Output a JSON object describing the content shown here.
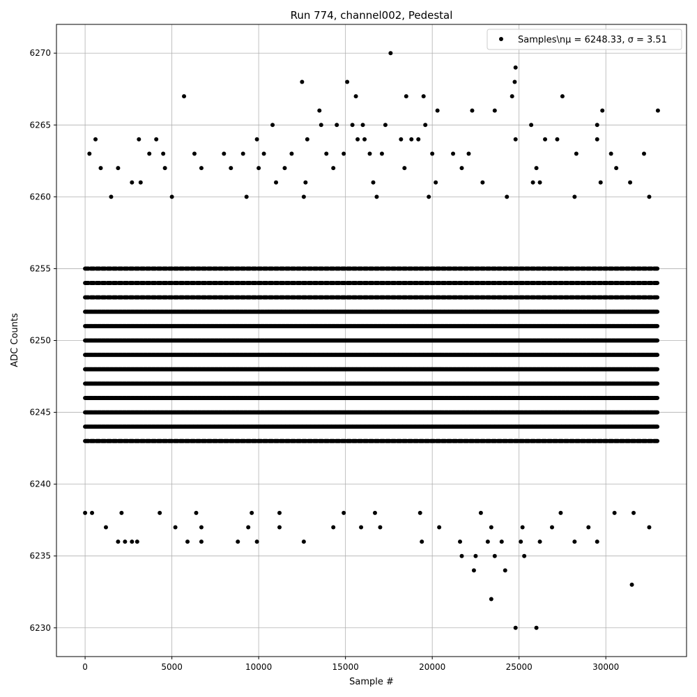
{
  "chart_data": {
    "type": "scatter",
    "title": "Run 774, channel002, Pedestal",
    "xlabel": "Sample #",
    "ylabel": "ADC Counts",
    "xlim": [
      -1650,
      34650
    ],
    "ylim": [
      6228,
      6272
    ],
    "x_ticks": [
      0,
      5000,
      10000,
      15000,
      20000,
      25000,
      30000
    ],
    "x_tick_labels": [
      "0",
      "5000",
      "10000",
      "15000",
      "20000",
      "25000",
      "30000"
    ],
    "y_ticks": [
      6230,
      6235,
      6240,
      6245,
      6250,
      6255,
      6260,
      6265,
      6270
    ],
    "y_tick_labels": [
      "6230",
      "6235",
      "6240",
      "6245",
      "6250",
      "6255",
      "6260",
      "6265",
      "6270"
    ],
    "grid": true,
    "legend_position": "top-right",
    "marker_color": "#000000",
    "series": [
      {
        "name": "Samples\\n$\\mu$ = 6248.33, $\\sigma$ = 3.51",
        "legend_label": "Samples\\nμ = 6248.33, σ = 3.51",
        "n_samples": 33000,
        "mean": 6248.33,
        "sigma": 3.51,
        "dense_band_x": [
          0,
          33000
        ],
        "dense_band_y": [
          6243,
          6255
        ],
        "points": [
          [
            17600,
            6270
          ],
          [
            24800,
            6269
          ],
          [
            24750,
            6268
          ],
          [
            15100,
            6268
          ],
          [
            12500,
            6268
          ],
          [
            5700,
            6267
          ],
          [
            15600,
            6267
          ],
          [
            18500,
            6267
          ],
          [
            19500,
            6267
          ],
          [
            24600,
            6267
          ],
          [
            27500,
            6267
          ],
          [
            13500,
            6266
          ],
          [
            20300,
            6266
          ],
          [
            22300,
            6266
          ],
          [
            23600,
            6266
          ],
          [
            29800,
            6266
          ],
          [
            33000,
            6266
          ],
          [
            13600,
            6265
          ],
          [
            10800,
            6265
          ],
          [
            14500,
            6265
          ],
          [
            15400,
            6265
          ],
          [
            16000,
            6265
          ],
          [
            17300,
            6265
          ],
          [
            19600,
            6265
          ],
          [
            25700,
            6265
          ],
          [
            29500,
            6265
          ],
          [
            600,
            6264
          ],
          [
            3100,
            6264
          ],
          [
            4100,
            6264
          ],
          [
            9900,
            6264
          ],
          [
            12800,
            6264
          ],
          [
            15700,
            6264
          ],
          [
            16100,
            6264
          ],
          [
            18200,
            6264
          ],
          [
            18800,
            6264
          ],
          [
            19200,
            6264
          ],
          [
            24800,
            6264
          ],
          [
            26500,
            6264
          ],
          [
            27200,
            6264
          ],
          [
            29500,
            6264
          ],
          [
            250,
            6263
          ],
          [
            3700,
            6263
          ],
          [
            4500,
            6263
          ],
          [
            6300,
            6263
          ],
          [
            8000,
            6263
          ],
          [
            9100,
            6263
          ],
          [
            10300,
            6263
          ],
          [
            11900,
            6263
          ],
          [
            13900,
            6263
          ],
          [
            14900,
            6263
          ],
          [
            16400,
            6263
          ],
          [
            17100,
            6263
          ],
          [
            20000,
            6263
          ],
          [
            21200,
            6263
          ],
          [
            22100,
            6263
          ],
          [
            28300,
            6263
          ],
          [
            30300,
            6263
          ],
          [
            32200,
            6263
          ],
          [
            2700,
            6261
          ],
          [
            3200,
            6261
          ],
          [
            11000,
            6261
          ],
          [
            12700,
            6261
          ],
          [
            16600,
            6261
          ],
          [
            20200,
            6261
          ],
          [
            22900,
            6261
          ],
          [
            25800,
            6261
          ],
          [
            26200,
            6261
          ],
          [
            29700,
            6261
          ],
          [
            31400,
            6261
          ],
          [
            900,
            6262
          ],
          [
            1900,
            6262
          ],
          [
            4600,
            6262
          ],
          [
            6700,
            6262
          ],
          [
            8400,
            6262
          ],
          [
            10000,
            6262
          ],
          [
            11500,
            6262
          ],
          [
            14300,
            6262
          ],
          [
            18400,
            6262
          ],
          [
            21700,
            6262
          ],
          [
            26000,
            6262
          ],
          [
            30600,
            6262
          ],
          [
            1500,
            6260
          ],
          [
            5000,
            6260
          ],
          [
            9300,
            6260
          ],
          [
            12600,
            6260
          ],
          [
            16800,
            6260
          ],
          [
            19800,
            6260
          ],
          [
            24300,
            6260
          ],
          [
            28200,
            6260
          ],
          [
            32500,
            6260
          ],
          [
            0,
            6238
          ],
          [
            400,
            6238
          ],
          [
            2100,
            6238
          ],
          [
            4300,
            6238
          ],
          [
            6400,
            6238
          ],
          [
            9600,
            6238
          ],
          [
            11200,
            6238
          ],
          [
            14900,
            6238
          ],
          [
            16700,
            6238
          ],
          [
            19300,
            6238
          ],
          [
            22800,
            6238
          ],
          [
            27400,
            6238
          ],
          [
            30500,
            6238
          ],
          [
            31600,
            6238
          ],
          [
            1200,
            6237
          ],
          [
            5200,
            6237
          ],
          [
            6700,
            6237
          ],
          [
            9400,
            6237
          ],
          [
            11200,
            6237
          ],
          [
            14300,
            6237
          ],
          [
            15900,
            6237
          ],
          [
            17000,
            6237
          ],
          [
            20400,
            6237
          ],
          [
            23400,
            6237
          ],
          [
            25200,
            6237
          ],
          [
            26900,
            6237
          ],
          [
            29000,
            6237
          ],
          [
            32500,
            6237
          ],
          [
            1900,
            6236
          ],
          [
            2300,
            6236
          ],
          [
            2700,
            6236
          ],
          [
            3000,
            6236
          ],
          [
            5900,
            6236
          ],
          [
            6700,
            6236
          ],
          [
            8800,
            6236
          ],
          [
            9900,
            6236
          ],
          [
            12600,
            6236
          ],
          [
            19400,
            6236
          ],
          [
            21600,
            6236
          ],
          [
            23200,
            6236
          ],
          [
            24000,
            6236
          ],
          [
            25100,
            6236
          ],
          [
            26200,
            6236
          ],
          [
            28200,
            6236
          ],
          [
            29500,
            6236
          ],
          [
            21700,
            6235
          ],
          [
            22500,
            6235
          ],
          [
            23600,
            6235
          ],
          [
            25300,
            6235
          ],
          [
            22400,
            6234
          ],
          [
            24200,
            6234
          ],
          [
            31500,
            6233
          ],
          [
            23400,
            6232
          ],
          [
            24800,
            6230
          ],
          [
            26000,
            6230
          ]
        ]
      }
    ]
  }
}
